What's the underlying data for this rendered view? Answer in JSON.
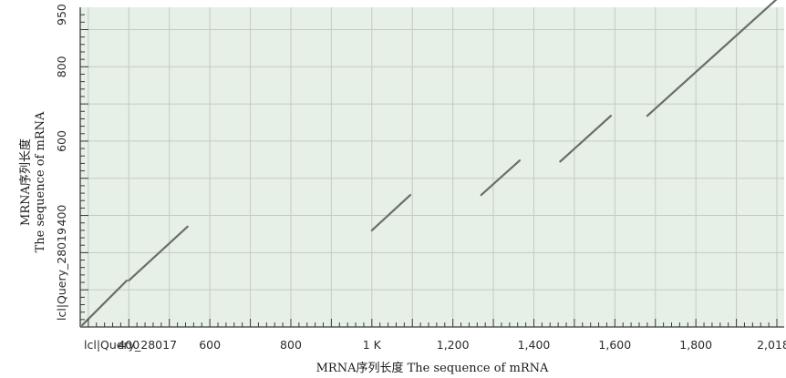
{
  "chart_data": {
    "type": "line",
    "title": "",
    "xlabel": "MRNA序列长度 The sequence of mRNA",
    "ylabel": "MRNA序列长度 The sequence of mRNA",
    "x_axis_name": "lcl|Query_28017",
    "y_axis_name": "lcl|Query_28019",
    "xlim": [
      280,
      2018
    ],
    "ylim": [
      100,
      960
    ],
    "x_ticks": [
      {
        "value": 400,
        "label": "400"
      },
      {
        "value": 600,
        "label": "600"
      },
      {
        "value": 800,
        "label": "800"
      },
      {
        "value": 1000,
        "label": "1 K"
      },
      {
        "value": 1200,
        "label": "1,200"
      },
      {
        "value": 1400,
        "label": "1,400"
      },
      {
        "value": 1600,
        "label": "1,600"
      },
      {
        "value": 1800,
        "label": "1,800"
      },
      {
        "value": 2018,
        "label": "2,018"
      }
    ],
    "y_ticks": [
      {
        "value": 400,
        "label": "400"
      },
      {
        "value": 600,
        "label": "600"
      },
      {
        "value": 800,
        "label": "800"
      },
      {
        "value": 950,
        "label": "950"
      }
    ],
    "grid": true,
    "series": [
      {
        "name": "",
        "x": [
          285,
          395
        ],
        "y": [
          105,
          225
        ]
      },
      {
        "name": "",
        "x": [
          400,
          545
        ],
        "y": [
          225,
          370
        ]
      },
      {
        "name": "",
        "x": [
          1000,
          1095
        ],
        "y": [
          360,
          455
        ]
      },
      {
        "name": "",
        "x": [
          1270,
          1365
        ],
        "y": [
          455,
          548
        ]
      },
      {
        "name": "",
        "x": [
          1465,
          1590
        ],
        "y": [
          545,
          668
        ]
      },
      {
        "name": "",
        "x": [
          1680,
          2018
        ],
        "y": [
          668,
          1000
        ]
      }
    ],
    "colors": {
      "background": "#e6f0e6",
      "grid": "#c4cbc4",
      "line": "#6a6e6a",
      "axis": "#3a3a3a"
    }
  }
}
